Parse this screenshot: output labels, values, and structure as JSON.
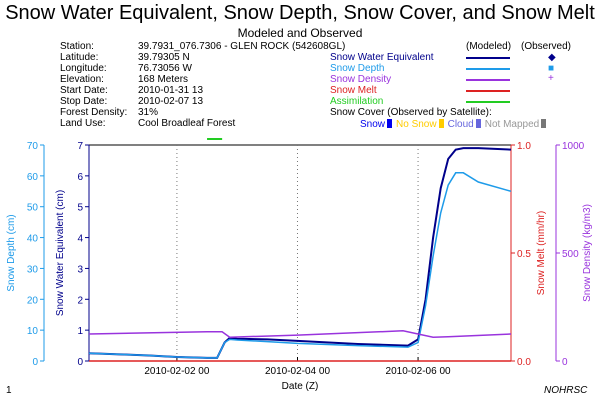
{
  "header": {
    "title": "Snow Water Equivalent, Snow Depth, Snow Cover, and Snow Melt",
    "subtitle": "Modeled and Observed"
  },
  "info": [
    {
      "label": "Station:",
      "value": "39.7931_076.7306 - GLEN ROCK (542608GL)"
    },
    {
      "label": "Latitude:",
      "value": "39.79305 N"
    },
    {
      "label": "Longitude:",
      "value": "76.73056 W"
    },
    {
      "label": "Elevation:",
      "value": "168 Meters"
    },
    {
      "label": "Start Date:",
      "value": "2010-01-31 13"
    },
    {
      "label": "Stop Date:",
      "value": "2010-02-07 13"
    },
    {
      "label": "Forest Density:",
      "value": "31%"
    },
    {
      "label": "Land Use:",
      "value": "Cool Broadleaf Forest"
    }
  ],
  "legend": {
    "modeled_header": "(Modeled)",
    "observed_header": "(Observed)",
    "items": [
      {
        "label": "Snow Water Equivalent",
        "color": "#00008b",
        "observed_marker": "◆"
      },
      {
        "label": "Snow Depth",
        "color": "#1e9be9",
        "observed_marker": "■"
      },
      {
        "label": "Snow Density",
        "color": "#9933dd",
        "observed_marker": "+"
      },
      {
        "label": "Snow Melt",
        "color": "#dd2222",
        "observed_marker": ""
      },
      {
        "label": "Assimilation",
        "color": "#22cc22",
        "observed_marker": ""
      }
    ]
  },
  "snow_cover": {
    "title": "Snow Cover (Observed by Satellite):",
    "items": [
      {
        "label": "Snow",
        "color": "#0000ee"
      },
      {
        "label": "No Snow",
        "color": "#ffcc00"
      },
      {
        "label": "Cloud",
        "color": "#6666dd"
      },
      {
        "label": "Not Mapped",
        "color": "#999999"
      }
    ]
  },
  "footer": {
    "page_number": "1",
    "credit": "NOHRSC"
  },
  "chart_data": {
    "type": "line",
    "xlabel": "Date (Z)",
    "x_range": [
      "2010-01-31 13",
      "2010-02-07 13"
    ],
    "x_ticks": [
      "2010-02-02 00",
      "2010-02-04 00",
      "2010-02-06 00"
    ],
    "grid": "vertical dotted at x ticks",
    "axes": {
      "snow_depth": {
        "label": "Snow Depth (cm)",
        "ylim": [
          0,
          70
        ],
        "ticks": [
          0,
          10,
          20,
          30,
          40,
          50,
          60,
          70
        ],
        "color": "#1e9be9"
      },
      "swe": {
        "label": "Snow Water Equivalent (cm)",
        "ylim": [
          0,
          7
        ],
        "ticks": [
          0,
          1,
          2,
          3,
          4,
          5,
          6,
          7
        ],
        "color": "#00008b"
      },
      "snow_melt": {
        "label": "Snow Melt (mm/hr)",
        "ylim": [
          0,
          1.0
        ],
        "ticks": [
          "0.0",
          "0.5",
          "1.0"
        ],
        "color": "#dd2222"
      },
      "snow_density": {
        "label": "Snow Density (kg/m3)",
        "ylim": [
          0,
          1000
        ],
        "ticks": [
          0,
          500,
          1000
        ],
        "color": "#9933dd"
      }
    },
    "series": [
      {
        "name": "Snow Water Equivalent",
        "axis": "swe",
        "x": [
          "2010-01-31 13",
          "2010-02-01 00",
          "2010-02-01 12",
          "2010-02-02 00",
          "2010-02-02 12",
          "2010-02-02 16",
          "2010-02-02 19",
          "2010-02-02 21",
          "2010-02-03 00",
          "2010-02-03 12",
          "2010-02-04 00",
          "2010-02-05 00",
          "2010-02-05 20",
          "2010-02-06 00",
          "2010-02-06 03",
          "2010-02-06 06",
          "2010-02-06 09",
          "2010-02-06 12",
          "2010-02-06 15",
          "2010-02-06 18",
          "2010-02-07 00",
          "2010-02-07 13"
        ],
        "values": [
          0.25,
          0.22,
          0.18,
          0.13,
          0.1,
          0.1,
          0.6,
          0.75,
          0.72,
          0.7,
          0.65,
          0.55,
          0.5,
          0.7,
          2.0,
          4.0,
          5.6,
          6.55,
          6.85,
          6.9,
          6.9,
          6.85
        ]
      },
      {
        "name": "Snow Depth",
        "axis": "snow_depth",
        "x": [
          "2010-01-31 13",
          "2010-02-01 00",
          "2010-02-01 12",
          "2010-02-02 00",
          "2010-02-02 12",
          "2010-02-02 16",
          "2010-02-02 19",
          "2010-02-02 21",
          "2010-02-03 00",
          "2010-02-03 12",
          "2010-02-04 00",
          "2010-02-05 00",
          "2010-02-05 20",
          "2010-02-06 00",
          "2010-02-06 03",
          "2010-02-06 06",
          "2010-02-06 09",
          "2010-02-06 12",
          "2010-02-06 15",
          "2010-02-06 18",
          "2010-02-07 00",
          "2010-02-07 13"
        ],
        "values": [
          2.5,
          2.2,
          1.8,
          1.3,
          1.0,
          1.0,
          6.0,
          7.0,
          6.8,
          6.3,
          5.7,
          5.0,
          4.5,
          6.0,
          18,
          34,
          48,
          57,
          61,
          61,
          58,
          55
        ]
      },
      {
        "name": "Snow Density",
        "axis": "snow_density",
        "x": [
          "2010-01-31 13",
          "2010-02-02 12",
          "2010-02-02 18",
          "2010-02-02 21",
          "2010-02-04 00",
          "2010-02-05 18",
          "2010-02-06 06",
          "2010-02-06 12",
          "2010-02-07 13"
        ],
        "values": [
          125,
          135,
          135,
          110,
          120,
          140,
          110,
          112,
          125
        ]
      },
      {
        "name": "Snow Melt",
        "axis": "snow_melt",
        "x": [
          "2010-01-31 13",
          "2010-02-07 13"
        ],
        "values": [
          0,
          0
        ]
      },
      {
        "name": "Assimilation",
        "axis": "top_marker",
        "x": [
          "2010-02-02 12",
          "2010-02-02 18"
        ],
        "values": [
          1,
          1
        ]
      }
    ]
  }
}
